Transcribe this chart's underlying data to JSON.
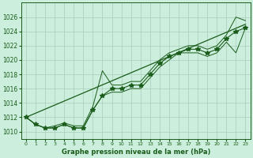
{
  "bg_color": "#cceedd",
  "grid_color": "#aaccbb",
  "line_color": "#1a5c1a",
  "xlabel": "Graphe pression niveau de la mer (hPa)",
  "ylim": [
    1009,
    1028
  ],
  "xlim": [
    -0.5,
    23.5
  ],
  "yticks": [
    1010,
    1012,
    1014,
    1016,
    1018,
    1020,
    1022,
    1024,
    1026
  ],
  "xtick_labels": [
    "0",
    "1",
    "2",
    "3",
    "4",
    "5",
    "6",
    "7",
    "8",
    "9",
    "10",
    "11",
    "12",
    "13",
    "14",
    "15",
    "16",
    "17",
    "18",
    "19",
    "20",
    "21",
    "22",
    "23"
  ],
  "pressure": [
    1012,
    1011,
    1010.5,
    1010.5,
    1011,
    1010.5,
    1010.5,
    1013,
    1015,
    1016,
    1016,
    1016.5,
    1016.5,
    1018,
    1019.5,
    1020.5,
    1021,
    1021.5,
    1021.5,
    1021,
    1021.5,
    1023,
    1024,
    1024.5
  ],
  "min_series": [
    1012,
    1011,
    1010.5,
    1010.5,
    1011,
    1010.5,
    1010.5,
    1013,
    1015,
    1015.5,
    1015.5,
    1016,
    1016,
    1017.5,
    1019,
    1020,
    1021,
    1021,
    1021,
    1020.5,
    1021,
    1022.5,
    1021,
    1024.5
  ],
  "max_series": [
    1012,
    1011,
    1010.5,
    1010.8,
    1011.2,
    1010.8,
    1010.8,
    1013.5,
    1018.5,
    1016.5,
    1016.5,
    1017,
    1017,
    1018.5,
    1020,
    1021,
    1021.5,
    1022,
    1022,
    1021.5,
    1022,
    1023.5,
    1026,
    1025.5
  ],
  "trend_x": [
    0,
    23
  ],
  "trend_y": [
    1012,
    1025
  ]
}
